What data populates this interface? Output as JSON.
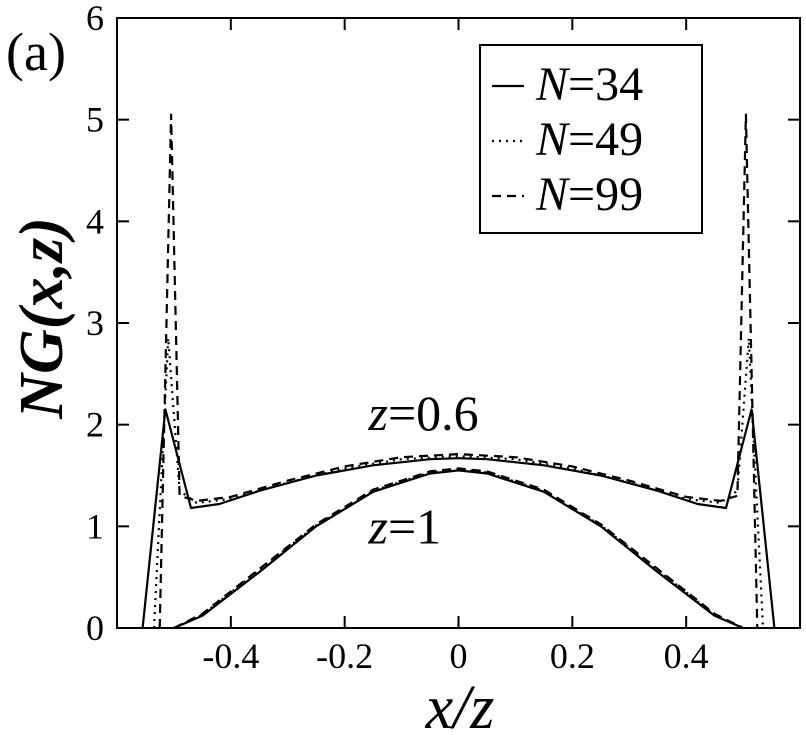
{
  "chart_data": {
    "type": "line",
    "panel_label": "(a)",
    "xlabel": "x/z",
    "ylabel": "NG(x,z)",
    "xlim": [
      -0.6,
      0.6
    ],
    "ylim": [
      0,
      6
    ],
    "xticks": [
      -0.4,
      -0.2,
      0,
      0.2,
      0.4
    ],
    "xtick_labels": [
      "-0.4",
      "-0.2",
      "0",
      "0.2",
      "0.4"
    ],
    "yticks": [
      0,
      1,
      2,
      3,
      4,
      5,
      6
    ],
    "ytick_labels": [
      "0",
      "1",
      "2",
      "3",
      "4",
      "5",
      "6"
    ],
    "grid": false,
    "legend_position": "top-right",
    "legend": [
      {
        "prefix": "N",
        "suffix": "=34",
        "style": "solid"
      },
      {
        "prefix": "N",
        "suffix": "=49",
        "style": "dotted"
      },
      {
        "prefix": "N",
        "suffix": "=99",
        "style": "dashed"
      }
    ],
    "annotations": [
      {
        "prefix": "z",
        "suffix": "=0.6",
        "x": 0.0,
        "y": 1.95
      },
      {
        "prefix": "z",
        "suffix": "=1",
        "x": 0.0,
        "y": 0.83
      }
    ],
    "series": [
      {
        "name": "N=34, z=0.6",
        "style": "solid",
        "x": [
          -0.555,
          -0.515,
          -0.47,
          -0.42,
          -0.35,
          -0.25,
          -0.15,
          -0.05,
          0.0,
          0.05,
          0.15,
          0.25,
          0.35,
          0.42,
          0.47,
          0.515,
          0.555
        ],
        "y": [
          0,
          2.15,
          1.18,
          1.22,
          1.35,
          1.5,
          1.6,
          1.66,
          1.67,
          1.66,
          1.6,
          1.5,
          1.35,
          1.22,
          1.18,
          2.15,
          0
        ]
      },
      {
        "name": "N=49, z=0.6",
        "style": "dotted",
        "x": [
          -0.535,
          -0.51,
          -0.49,
          -0.46,
          -0.4,
          -0.3,
          -0.2,
          -0.1,
          0.0,
          0.1,
          0.2,
          0.3,
          0.4,
          0.46,
          0.49,
          0.51,
          0.535
        ],
        "y": [
          0,
          2.85,
          1.35,
          1.23,
          1.27,
          1.43,
          1.57,
          1.66,
          1.69,
          1.66,
          1.57,
          1.43,
          1.27,
          1.23,
          1.35,
          2.85,
          0
        ]
      },
      {
        "name": "N=99, z=0.6",
        "style": "dashed",
        "x": [
          -0.525,
          -0.505,
          -0.49,
          -0.46,
          -0.4,
          -0.3,
          -0.2,
          -0.1,
          0.0,
          0.1,
          0.2,
          0.3,
          0.4,
          0.46,
          0.49,
          0.505,
          0.525
        ],
        "y": [
          0,
          5.05,
          1.3,
          1.25,
          1.29,
          1.45,
          1.59,
          1.68,
          1.71,
          1.68,
          1.59,
          1.45,
          1.29,
          1.25,
          1.3,
          5.05,
          0
        ]
      },
      {
        "name": "N=34, z=1",
        "style": "solid",
        "x": [
          -0.5,
          -0.45,
          -0.35,
          -0.25,
          -0.15,
          -0.05,
          0.0,
          0.05,
          0.15,
          0.25,
          0.35,
          0.45,
          0.5
        ],
        "y": [
          0,
          0.12,
          0.55,
          1.0,
          1.34,
          1.52,
          1.55,
          1.52,
          1.34,
          1.0,
          0.55,
          0.12,
          0
        ]
      },
      {
        "name": "N=49, z=1",
        "style": "dotted",
        "x": [
          -0.5,
          -0.45,
          -0.35,
          -0.25,
          -0.15,
          -0.05,
          0.0,
          0.05,
          0.15,
          0.25,
          0.35,
          0.45,
          0.5
        ],
        "y": [
          0,
          0.13,
          0.57,
          1.01,
          1.35,
          1.53,
          1.56,
          1.53,
          1.35,
          1.01,
          0.57,
          0.13,
          0
        ]
      },
      {
        "name": "N=99, z=1",
        "style": "dashed",
        "x": [
          -0.5,
          -0.45,
          -0.35,
          -0.25,
          -0.15,
          -0.05,
          0.0,
          0.05,
          0.15,
          0.25,
          0.35,
          0.45,
          0.5
        ],
        "y": [
          0,
          0.14,
          0.58,
          1.02,
          1.36,
          1.54,
          1.57,
          1.54,
          1.36,
          1.02,
          0.58,
          0.14,
          0
        ]
      }
    ]
  }
}
